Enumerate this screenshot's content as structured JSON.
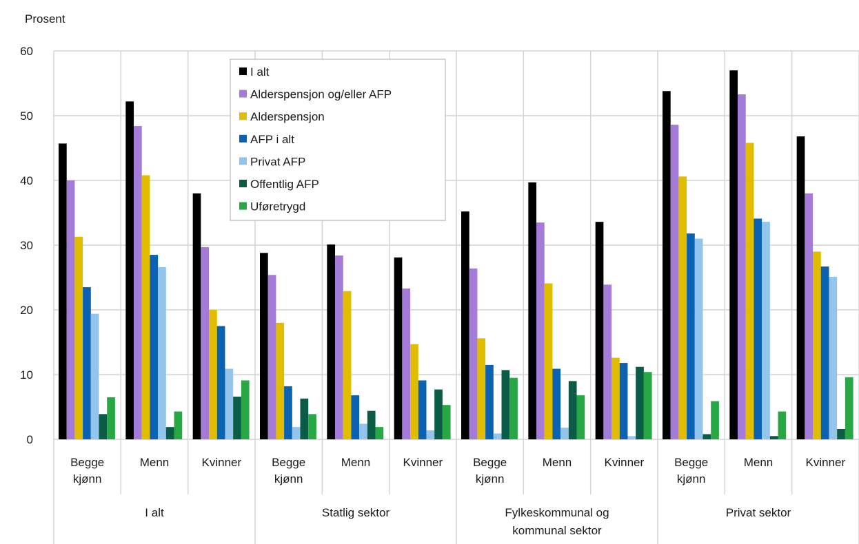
{
  "chart_data": {
    "type": "bar",
    "ylabel": "Prosent",
    "ylim": [
      0,
      60
    ],
    "yticks": [
      0,
      10,
      20,
      30,
      40,
      50,
      60
    ],
    "grid": true,
    "legend_position": "top, inside plot area",
    "groups": [
      {
        "label_lines": [
          "I alt"
        ],
        "categories": [
          [
            "Begge",
            "kjønn"
          ],
          [
            "Menn"
          ],
          [
            "Kvinner"
          ]
        ]
      },
      {
        "label_lines": [
          "Statlig sektor"
        ],
        "categories": [
          [
            "Begge",
            "kjønn"
          ],
          [
            "Menn"
          ],
          [
            "Kvinner"
          ]
        ]
      },
      {
        "label_lines": [
          "Fylkeskommunal og",
          "kommunal sektor"
        ],
        "categories": [
          [
            "Begge",
            "kjønn"
          ],
          [
            "Menn"
          ],
          [
            "Kvinner"
          ]
        ]
      },
      {
        "label_lines": [
          "Privat sektor"
        ],
        "categories": [
          [
            "Begge",
            "kjønn"
          ],
          [
            "Menn"
          ],
          [
            "Kvinner"
          ]
        ]
      }
    ],
    "series": [
      {
        "name": "I alt",
        "color": "#000000",
        "values": [
          45.7,
          52.2,
          38.0,
          28.8,
          30.1,
          28.1,
          35.2,
          39.7,
          33.6,
          53.8,
          57.0,
          46.8
        ]
      },
      {
        "name": "Alderspensjon og/eller AFP",
        "color": "#a57bd9",
        "values": [
          40.0,
          48.4,
          29.7,
          25.4,
          28.4,
          23.3,
          26.4,
          33.5,
          23.9,
          48.6,
          53.3,
          38.0
        ]
      },
      {
        "name": "Alderspensjon",
        "color": "#e0bd00",
        "values": [
          31.3,
          40.8,
          20.0,
          18.0,
          22.9,
          14.7,
          15.6,
          24.1,
          12.6,
          40.6,
          45.8,
          29.0
        ]
      },
      {
        "name": "AFP i alt",
        "color": "#0a62b0",
        "values": [
          23.5,
          28.5,
          17.5,
          8.2,
          6.8,
          9.1,
          11.5,
          10.9,
          11.8,
          31.8,
          34.1,
          26.7
        ]
      },
      {
        "name": "Privat AFP",
        "color": "#92c4ec",
        "values": [
          19.4,
          26.6,
          10.9,
          1.9,
          2.4,
          1.4,
          0.9,
          1.8,
          0.5,
          31.0,
          33.6,
          25.1
        ]
      },
      {
        "name": "Offentlig AFP",
        "color": "#0a5c46",
        "values": [
          3.9,
          1.9,
          6.6,
          6.3,
          4.4,
          7.7,
          10.7,
          9.0,
          11.2,
          0.8,
          0.5,
          1.6
        ]
      },
      {
        "name": "Uføretrygd",
        "color": "#27a845",
        "values": [
          6.5,
          4.3,
          9.1,
          3.9,
          1.9,
          5.3,
          9.5,
          6.8,
          10.4,
          5.9,
          4.3,
          9.6
        ]
      }
    ]
  }
}
